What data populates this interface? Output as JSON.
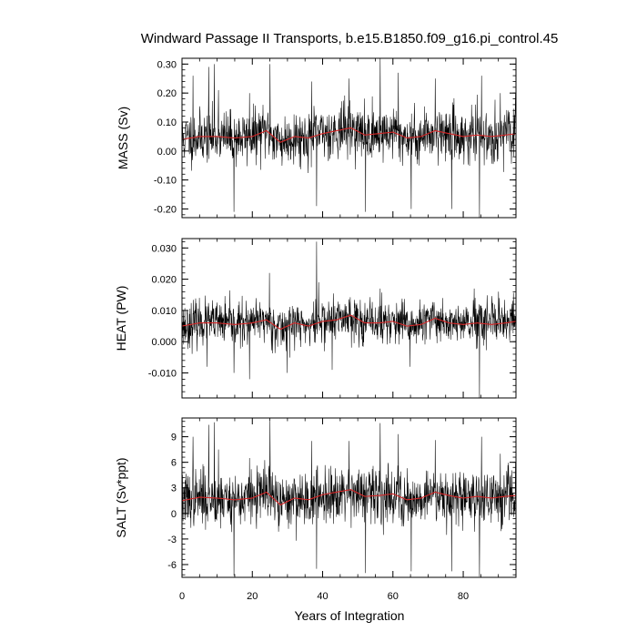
{
  "title": "Windward Passage II Transports, b.e15.B1850.f09_g16.pi_control.45",
  "x_axis": {
    "label": "Years of Integration",
    "range": [
      0,
      95
    ],
    "ticks": [
      0,
      20,
      40,
      60,
      80
    ],
    "tick_labels": [
      "0",
      "20",
      "40",
      "60",
      "80"
    ]
  },
  "colors": {
    "raw": "#000000",
    "smooth": "#d62728",
    "frame": "#000000"
  },
  "chart_data": [
    {
      "type": "line",
      "name": "mass",
      "ylabel": "MASS (Sv)",
      "ylim": [
        -0.23,
        0.32
      ],
      "yticks": [
        -0.2,
        -0.1,
        0.0,
        0.1,
        0.2,
        0.3
      ],
      "ytick_labels": [
        "-0.20",
        "-0.10",
        "0.00",
        "0.10",
        "0.20",
        "0.30"
      ],
      "x_start": 0.04,
      "x_step": 0.08333,
      "mean": 0.05,
      "noise_sd": 0.045,
      "seed": 11,
      "extremes": [
        [
          3.1,
          0.26
        ],
        [
          7.6,
          0.29
        ],
        [
          9.2,
          0.3
        ],
        [
          10.4,
          0.21
        ],
        [
          14.8,
          -0.21
        ],
        [
          19.2,
          0.2
        ],
        [
          25.0,
          0.3
        ],
        [
          36.9,
          0.24
        ],
        [
          38.3,
          -0.19
        ],
        [
          47.5,
          0.25
        ],
        [
          52.2,
          -0.21
        ],
        [
          56.4,
          0.32
        ],
        [
          61.5,
          0.27
        ],
        [
          65.2,
          -0.2
        ],
        [
          72.0,
          0.25
        ],
        [
          76.7,
          -0.2
        ],
        [
          84.6,
          -0.23
        ],
        [
          85.2,
          0.26
        ],
        [
          90.5,
          0.2
        ]
      ],
      "smooth": [
        [
          0,
          0.04
        ],
        [
          5,
          0.05
        ],
        [
          10,
          0.05
        ],
        [
          15,
          0.045
        ],
        [
          20,
          0.05
        ],
        [
          24,
          0.07
        ],
        [
          28,
          0.03
        ],
        [
          32,
          0.05
        ],
        [
          36,
          0.045
        ],
        [
          40,
          0.06
        ],
        [
          44,
          0.07
        ],
        [
          48,
          0.08
        ],
        [
          52,
          0.055
        ],
        [
          56,
          0.06
        ],
        [
          60,
          0.065
        ],
        [
          64,
          0.045
        ],
        [
          68,
          0.05
        ],
        [
          72,
          0.07
        ],
        [
          76,
          0.06
        ],
        [
          80,
          0.05
        ],
        [
          84,
          0.055
        ],
        [
          88,
          0.05
        ],
        [
          92,
          0.055
        ],
        [
          95,
          0.06
        ]
      ]
    },
    {
      "type": "line",
      "name": "heat",
      "ylabel": "HEAT (PW)",
      "ylim": [
        -0.018,
        0.033
      ],
      "yticks": [
        -0.01,
        0.0,
        0.01,
        0.02,
        0.03
      ],
      "ytick_labels": [
        "-0.010",
        "0.000",
        "0.010",
        "0.020",
        "0.030"
      ],
      "x_start": 0.04,
      "x_step": 0.08333,
      "mean": 0.0055,
      "noise_sd": 0.0035,
      "seed": 23,
      "extremes": [
        [
          7.1,
          -0.008
        ],
        [
          14.8,
          -0.01
        ],
        [
          19.2,
          -0.012
        ],
        [
          24.9,
          0.022
        ],
        [
          29.9,
          -0.01
        ],
        [
          38.3,
          0.032
        ],
        [
          38.9,
          0.019
        ],
        [
          42.7,
          -0.009
        ],
        [
          56.4,
          0.017
        ],
        [
          64.9,
          -0.008
        ],
        [
          84.6,
          -0.018
        ],
        [
          90.0,
          0.016
        ]
      ],
      "smooth": [
        [
          0,
          0.005
        ],
        [
          5,
          0.006
        ],
        [
          10,
          0.006
        ],
        [
          15,
          0.0055
        ],
        [
          20,
          0.006
        ],
        [
          24,
          0.007
        ],
        [
          28,
          0.004
        ],
        [
          32,
          0.006
        ],
        [
          36,
          0.005
        ],
        [
          40,
          0.0065
        ],
        [
          44,
          0.007
        ],
        [
          48,
          0.0085
        ],
        [
          52,
          0.006
        ],
        [
          56,
          0.006
        ],
        [
          60,
          0.0065
        ],
        [
          64,
          0.005
        ],
        [
          68,
          0.0055
        ],
        [
          72,
          0.0075
        ],
        [
          76,
          0.006
        ],
        [
          80,
          0.0055
        ],
        [
          84,
          0.006
        ],
        [
          88,
          0.0055
        ],
        [
          92,
          0.006
        ],
        [
          95,
          0.0065
        ]
      ]
    },
    {
      "type": "line",
      "name": "salt",
      "ylabel": "SALT (Sv*ppt)",
      "ylim": [
        -7.5,
        11.2
      ],
      "yticks": [
        -6,
        -3,
        0,
        3,
        6,
        9
      ],
      "ytick_labels": [
        "-6",
        "-3",
        "0",
        "3",
        "6",
        "9"
      ],
      "x_start": 0.04,
      "x_step": 0.08333,
      "mean": 1.8,
      "noise_sd": 1.6,
      "seed": 37,
      "extremes": [
        [
          3.1,
          9.0
        ],
        [
          7.6,
          10.4
        ],
        [
          9.2,
          10.7
        ],
        [
          10.4,
          7.5
        ],
        [
          14.8,
          -7.3
        ],
        [
          19.2,
          6.5
        ],
        [
          25.0,
          10.8
        ],
        [
          36.9,
          8.5
        ],
        [
          38.3,
          -6.5
        ],
        [
          47.5,
          8.5
        ],
        [
          52.2,
          -7.0
        ],
        [
          56.4,
          10.6
        ],
        [
          61.5,
          9.3
        ],
        [
          65.2,
          -6.8
        ],
        [
          72.0,
          8.6
        ],
        [
          76.7,
          -6.8
        ],
        [
          84.6,
          -7.4
        ],
        [
          85.2,
          9.0
        ],
        [
          90.5,
          7.0
        ]
      ],
      "smooth": [
        [
          0,
          1.5
        ],
        [
          5,
          1.9
        ],
        [
          10,
          1.8
        ],
        [
          15,
          1.6
        ],
        [
          20,
          1.8
        ],
        [
          24,
          2.5
        ],
        [
          28,
          1.0
        ],
        [
          32,
          1.8
        ],
        [
          36,
          1.6
        ],
        [
          40,
          2.2
        ],
        [
          44,
          2.5
        ],
        [
          48,
          2.8
        ],
        [
          52,
          2.0
        ],
        [
          56,
          2.1
        ],
        [
          60,
          2.3
        ],
        [
          64,
          1.6
        ],
        [
          68,
          1.8
        ],
        [
          72,
          2.5
        ],
        [
          76,
          2.1
        ],
        [
          80,
          1.8
        ],
        [
          84,
          2.0
        ],
        [
          88,
          1.8
        ],
        [
          92,
          2.0
        ],
        [
          95,
          2.1
        ]
      ]
    }
  ]
}
